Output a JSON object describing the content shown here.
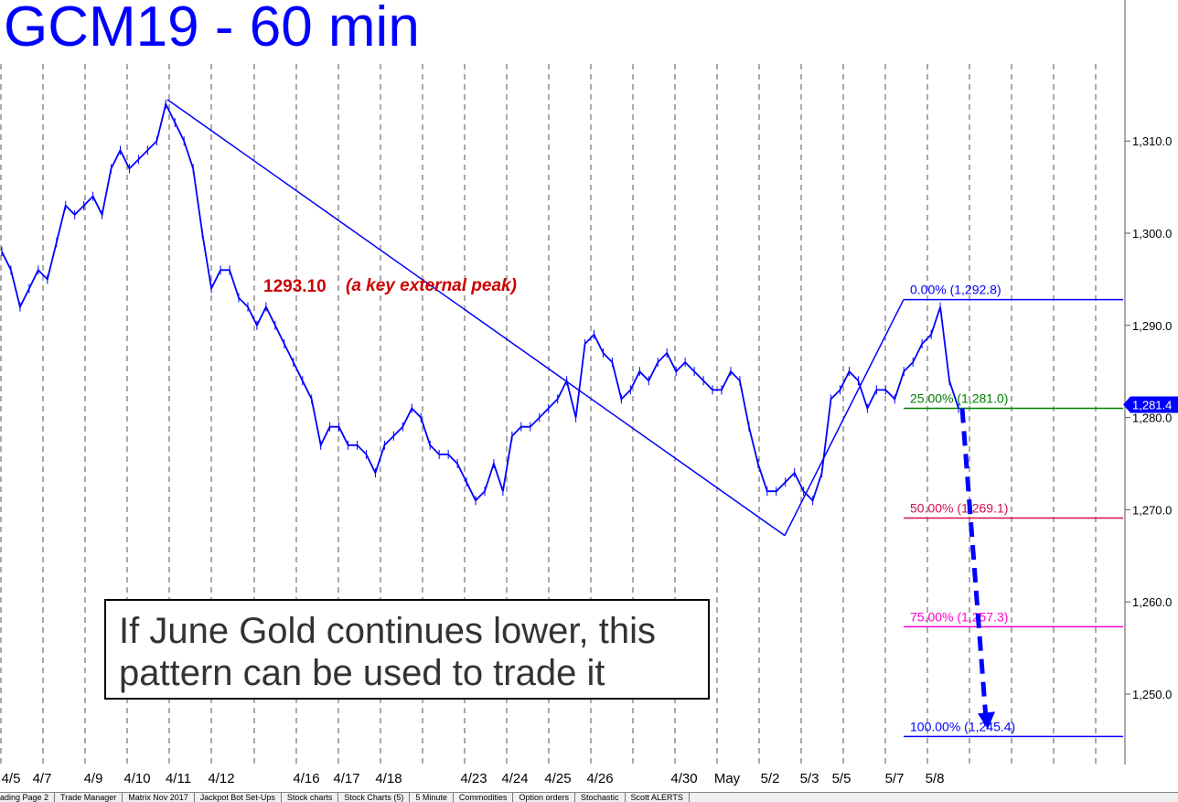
{
  "title": "GCM19 - 60 min",
  "callout": {
    "line1": "If June Gold continues lower, this",
    "line2": "pattern can be used to trade it"
  },
  "colors": {
    "price": "#0000ff",
    "fib_0": "#0000ff",
    "fib_25": "#008000",
    "fib_50": "#d0104c",
    "fib_75": "#ff00cc",
    "fib_100": "#0000ff",
    "annotation": "#cc0000"
  },
  "chart_data": {
    "type": "line",
    "title": "GCM19 - 60 min",
    "x_labels": [
      "4/5",
      "4/7",
      "4/9",
      "4/10",
      "4/11",
      "4/12",
      "4/16",
      "4/17",
      "4/18",
      "4/23",
      "4/24",
      "4/25",
      "4/26",
      "4/30",
      "May",
      "5/2",
      "5/3",
      "5/5",
      "5/7",
      "5/8"
    ],
    "y_ticks": [
      "1,250.0",
      "1,260.0",
      "1,270.0",
      "1,280.0",
      "1,290.0",
      "1,300.0",
      "1,310.0"
    ],
    "ylim": [
      1240.0,
      1315.0
    ],
    "current_price_label": "1,281.4",
    "current_price": 1281.4,
    "series": [
      {
        "values": [
          1298,
          1296,
          1292,
          1294,
          1296,
          1295,
          1299,
          1303,
          1302,
          1303,
          1304,
          1302,
          1307,
          1309,
          1307,
          1308,
          1309,
          1310,
          1314,
          1312,
          1310,
          1307,
          1300,
          1294,
          1296,
          1296,
          1293,
          1292,
          1290,
          1292,
          1290,
          1288,
          1286,
          1284,
          1282,
          1277,
          1279,
          1279,
          1277,
          1277,
          1276,
          1274,
          1277,
          1278,
          1279,
          1281,
          1280,
          1277,
          1276,
          1276,
          1275,
          1273,
          1271,
          1272,
          1275,
          1272,
          1278,
          1279,
          1279,
          1280,
          1281,
          1282,
          1284,
          1280,
          1288,
          1289,
          1287,
          1286,
          1282,
          1283,
          1285,
          1284,
          1286,
          1287,
          1285,
          1286,
          1285,
          1284,
          1283,
          1283,
          1285,
          1284,
          1279,
          1275,
          1272,
          1272,
          1273,
          1274,
          1272,
          1271,
          1274,
          1282,
          1283,
          1285,
          1284,
          1281,
          1283,
          1283,
          1282,
          1285,
          1286,
          1288,
          1289,
          1292,
          1284,
          1281
        ]
      }
    ],
    "annotations": [
      {
        "text": "1293.10",
        "value": 1293.1
      },
      {
        "text": "(a key external peak)"
      }
    ],
    "pattern_lines": [
      {
        "from": {
          "x": "4/10",
          "value": 1314.5
        },
        "to": {
          "x": "5/2",
          "value": 1267.2
        }
      },
      {
        "from": {
          "x": "5/2",
          "value": 1267.2
        },
        "to": {
          "x": "5/7",
          "value": 1292.8
        }
      },
      {
        "from": {
          "x": "5/8",
          "value": 1281.0
        },
        "to": {
          "x": "5/8",
          "value": 1246.5
        },
        "style": "dashed-arrow"
      }
    ],
    "fib_levels": [
      {
        "label": "0.00% (1,292.8)",
        "pct": 0.0,
        "value": 1292.8,
        "color": "#0000ff"
      },
      {
        "label": "25.00% (1,281.0)",
        "pct": 25.0,
        "value": 1281.0,
        "color": "#008000"
      },
      {
        "label": "50.00% (1,269.1)",
        "pct": 50.0,
        "value": 1269.1,
        "color": "#d0104c"
      },
      {
        "label": "75.00% (1,257.3)",
        "pct": 75.0,
        "value": 1257.3,
        "color": "#ff00cc"
      },
      {
        "label": "100.00% (1,245.4)",
        "pct": 100.0,
        "value": 1245.4,
        "color": "#0000ff"
      }
    ],
    "grid": "vertical dashed day separators",
    "legend": "none"
  },
  "tabs": [
    "ading Page 2",
    "Trade Manager",
    "Matrix Nov 2017",
    "Jackpot Bot Set-Ups",
    "Stock charts",
    "Stock Charts (5)",
    "5 Minute",
    "Commodities",
    "Option orders",
    "Stochastic",
    "Scott ALERTS"
  ]
}
